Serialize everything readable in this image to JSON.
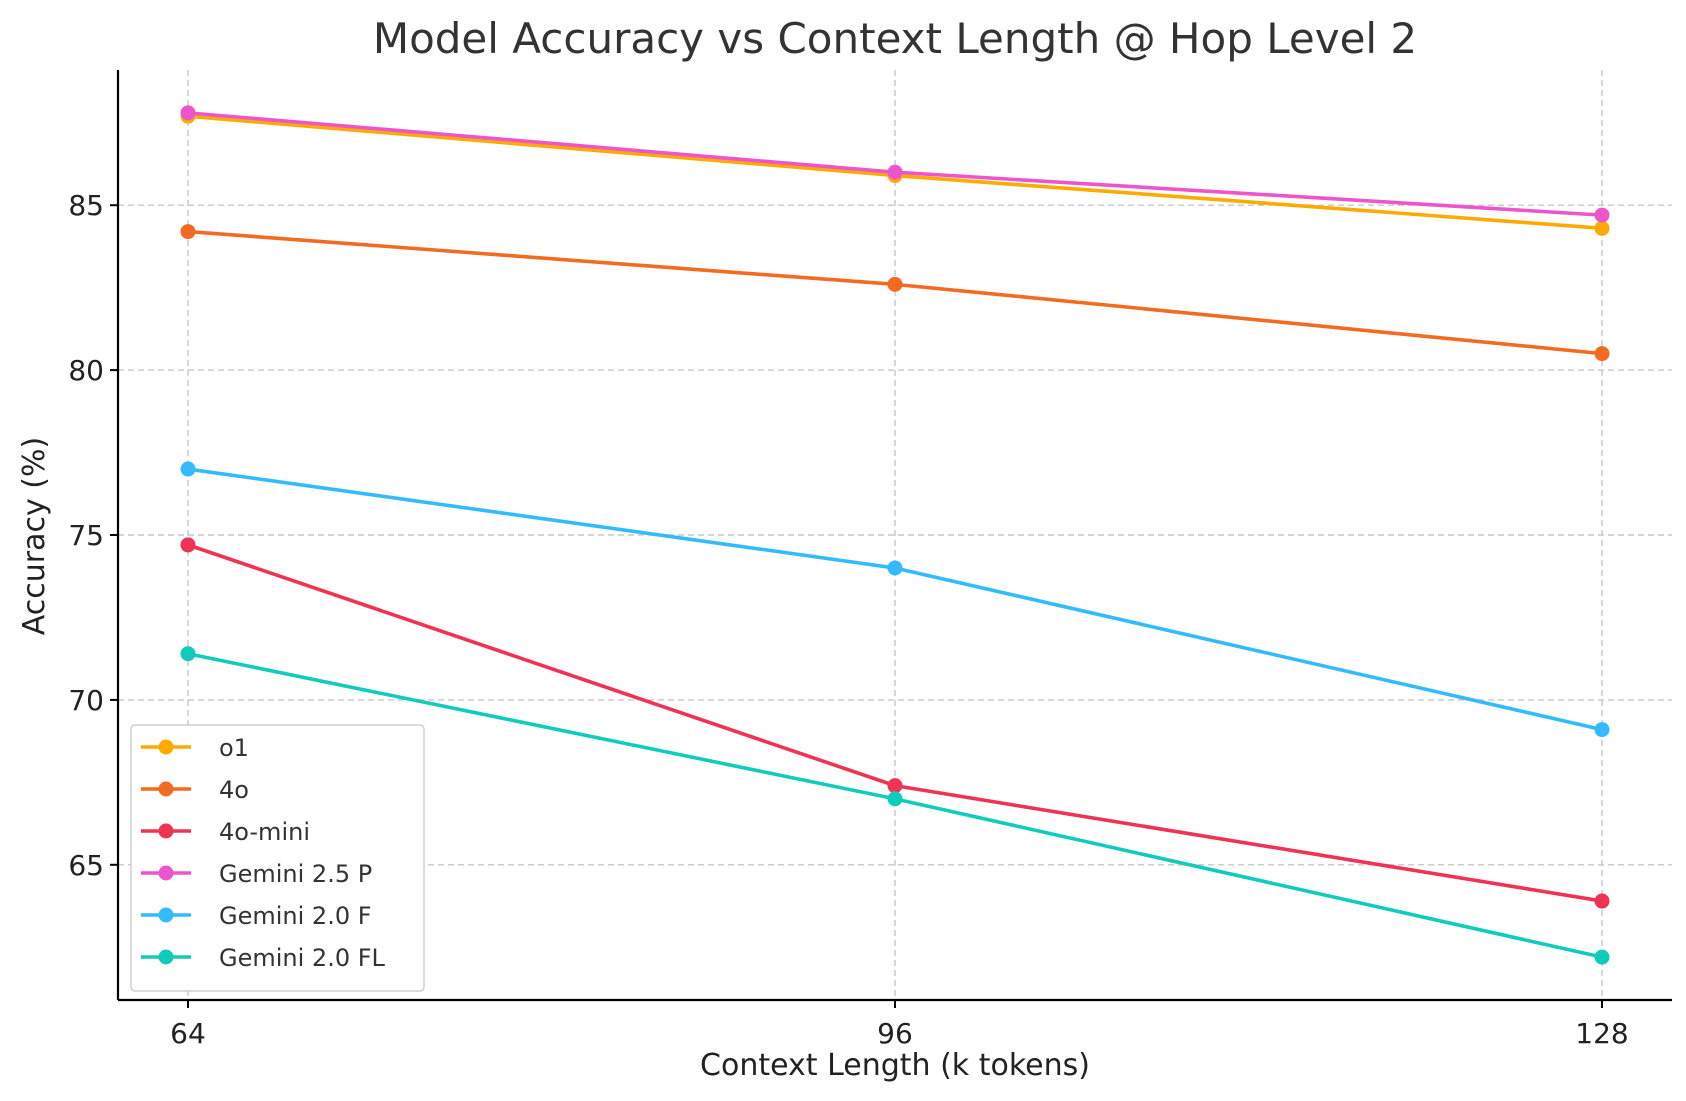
{
  "chart_data": {
    "type": "line",
    "title": "Model Accuracy vs Context Length @ Hop Level 2",
    "xlabel": "Context Length (k tokens)",
    "ylabel": "Accuracy (%)",
    "x": [
      64,
      96,
      128
    ],
    "x_ticks": [
      "64",
      "96",
      "128"
    ],
    "y_ticks": [
      "65",
      "70",
      "75",
      "80",
      "85"
    ],
    "ylim": [
      60.9,
      89.1
    ],
    "grid": true,
    "legend_position": "lower-left",
    "series": [
      {
        "name": "o1",
        "color": "#FFAA00",
        "values": [
          87.7,
          85.9,
          84.3
        ]
      },
      {
        "name": "4o",
        "color": "#F26B21",
        "values": [
          84.2,
          82.6,
          80.5
        ]
      },
      {
        "name": "4o-mini",
        "color": "#EE3355",
        "values": [
          74.7,
          67.4,
          63.9
        ]
      },
      {
        "name": "Gemini 2.5 P",
        "color": "#EE55CC",
        "values": [
          87.8,
          86.0,
          84.7
        ]
      },
      {
        "name": "Gemini 2.0 F",
        "color": "#33BBFF",
        "values": [
          77.0,
          74.0,
          69.1
        ]
      },
      {
        "name": "Gemini 2.0 FL",
        "color": "#11CCBB",
        "values": [
          71.4,
          67.0,
          62.2
        ]
      }
    ]
  }
}
